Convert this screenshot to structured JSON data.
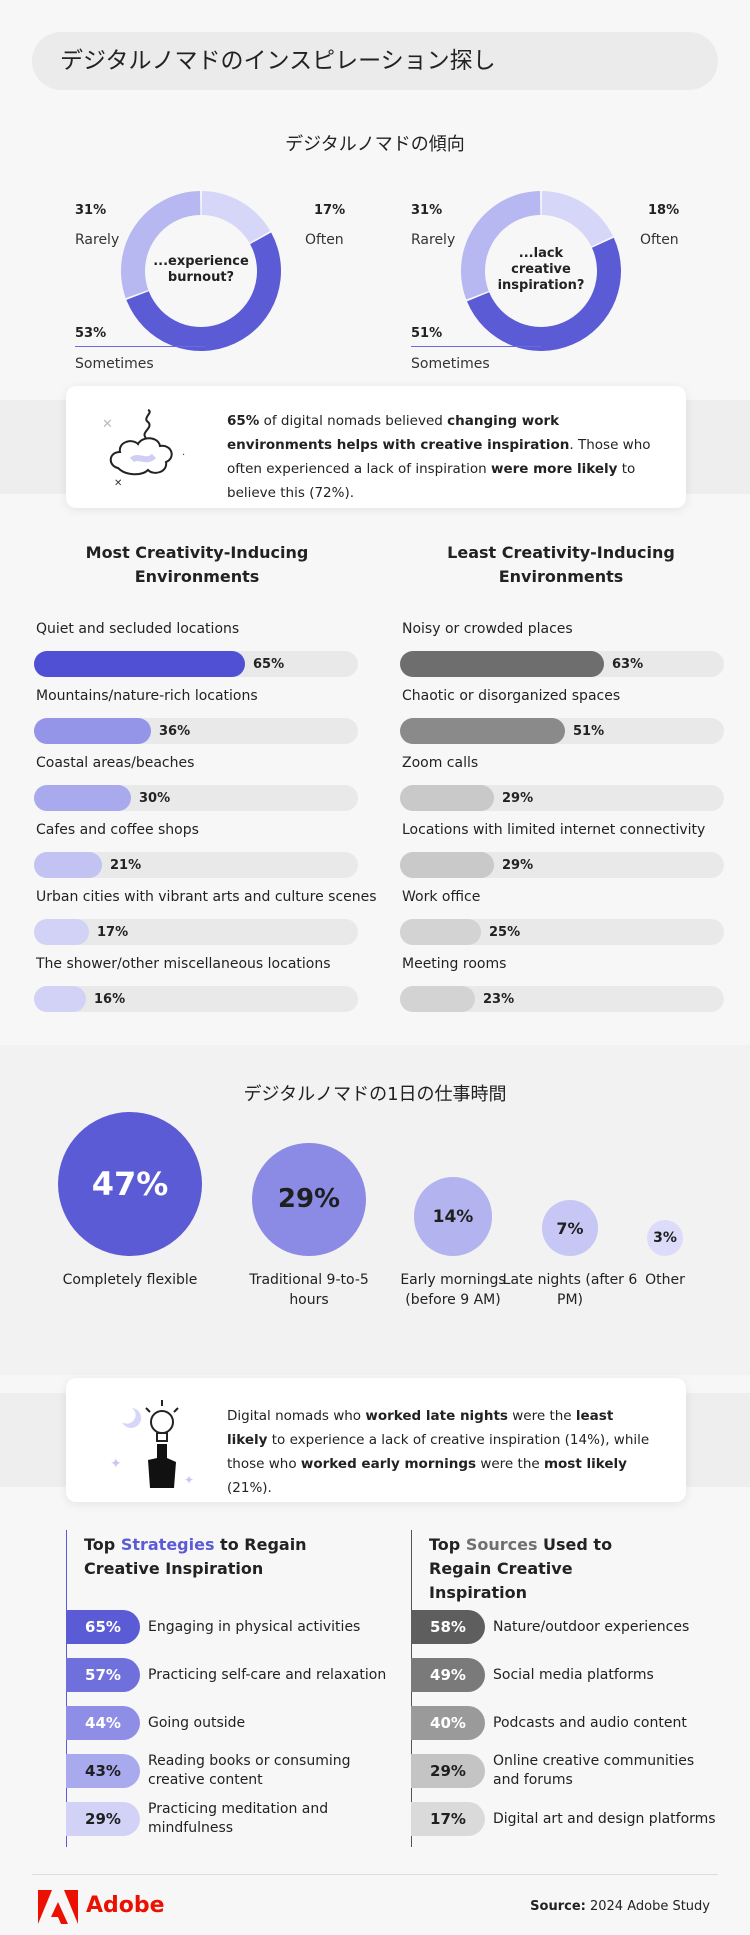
{
  "title": "デジタルノマドのインスピレーション探し",
  "section1": {
    "title": "デジタルノマドの傾向",
    "donut1": {
      "center": [
        "...experience",
        "burnout?"
      ],
      "rarely_pct": "31%",
      "rarely_label": "Rarely",
      "often_pct": "17%",
      "often_label": "Often",
      "sometimes_pct": "53%",
      "sometimes_label": "Sometimes"
    },
    "donut2": {
      "center": [
        "...lack",
        "creative",
        "inspiration?"
      ],
      "rarely_pct": "31%",
      "rarely_label": "Rarely",
      "often_pct": "18%",
      "often_label": "Often",
      "sometimes_pct": "51%",
      "sometimes_label": "Sometimes"
    }
  },
  "card1": {
    "p1": "65%",
    "p2": " of digital nomads believed ",
    "p3": "changing work environments helps with creative inspiration",
    "p4": ". Those who often experienced a lack of inspiration ",
    "p5": "were more likely",
    "p6": " to believe this (72%)."
  },
  "environments": {
    "most_title": "Most Creativity-Inducing Environments",
    "least_title": "Least Creativity-Inducing Environments"
  },
  "section2": {
    "title": "デジタルノマドの1日の仕事時間"
  },
  "card2": {
    "p1": "Digital nomads who ",
    "p2": "worked late nights",
    "p3": " were the ",
    "p4": "least likely",
    "p5": " to experience a lack of creative inspiration (14%), while those who ",
    "p6": "worked early mornings",
    "p7": " were the ",
    "p8": "most likely",
    "p9": " (21%)."
  },
  "strategies": {
    "head_a": "Top ",
    "head_b": "Strategies",
    "head_c": " to Regain Creative Inspiration",
    "items": [
      {
        "pct": "65%",
        "label": "Engaging in physical activities"
      },
      {
        "pct": "57%",
        "label": "Practicing self-care and relaxation"
      },
      {
        "pct": "44%",
        "label": "Going outside"
      },
      {
        "pct": "43%",
        "label": "Reading books or consuming creative content"
      },
      {
        "pct": "29%",
        "label": "Practicing meditation and mindfulness"
      }
    ]
  },
  "sources": {
    "head_a": "Top ",
    "head_b": "Sources",
    "head_c": " Used to Regain Creative Inspiration",
    "items": [
      {
        "pct": "58%",
        "label": "Nature/outdoor experiences"
      },
      {
        "pct": "49%",
        "label": "Social media platforms"
      },
      {
        "pct": "40%",
        "label": "Podcasts and audio content"
      },
      {
        "pct": "29%",
        "label": "Online creative communities and forums"
      },
      {
        "pct": "17%",
        "label": "Digital art and design platforms"
      }
    ]
  },
  "footer": {
    "brand": "Adobe",
    "source_label": "Source:",
    "source_value": " 2024 Adobe Study"
  },
  "colors": {
    "purple_dark": "#5b5bd6",
    "purple_mid": "#8b8be6",
    "purple_light": "#b7b7f1",
    "purple_pale": "#d6d6f8",
    "gray_dark": "#707070",
    "adobe_red": "#eb1000"
  },
  "chart_data": [
    {
      "type": "pie",
      "title": "...experience burnout?",
      "categories": [
        "Often",
        "Sometimes",
        "Rarely"
      ],
      "values": [
        17,
        53,
        31
      ]
    },
    {
      "type": "pie",
      "title": "...lack creative inspiration?",
      "categories": [
        "Often",
        "Sometimes",
        "Rarely"
      ],
      "values": [
        18,
        51,
        31
      ]
    },
    {
      "type": "bar",
      "title": "Most Creativity-Inducing Environments",
      "categories": [
        "Quiet and secluded locations",
        "Mountains/nature-rich locations",
        "Coastal areas/beaches",
        "Cafes and coffee shops",
        "Urban cities with vibrant arts and culture scenes",
        "The shower/other miscellaneous locations"
      ],
      "values": [
        65,
        36,
        30,
        21,
        17,
        16
      ],
      "ylim": [
        0,
        100
      ]
    },
    {
      "type": "bar",
      "title": "Least Creativity-Inducing Environments",
      "categories": [
        "Noisy or crowded places",
        "Chaotic or disorganized spaces",
        "Zoom calls",
        "Locations with limited internet connectivity",
        "Work office",
        "Meeting rooms"
      ],
      "values": [
        63,
        51,
        29,
        29,
        25,
        23
      ],
      "ylim": [
        0,
        100
      ]
    },
    {
      "type": "scatter",
      "title": "デジタルノマドの1日の仕事時間",
      "categories": [
        "Completely flexible",
        "Traditional 9-to-5 hours",
        "Early mornings (before 9 AM)",
        "Late nights (after 6 PM)",
        "Other"
      ],
      "values": [
        47,
        29,
        14,
        7,
        3
      ]
    }
  ]
}
